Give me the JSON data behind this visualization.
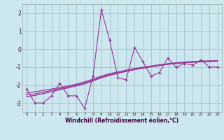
{
  "x": [
    0,
    1,
    2,
    3,
    4,
    5,
    6,
    7,
    8,
    9,
    10,
    11,
    12,
    13,
    14,
    15,
    16,
    17,
    18,
    19,
    20,
    21,
    22,
    23
  ],
  "y_main": [
    -2.2,
    -3.0,
    -3.0,
    -2.6,
    -1.9,
    -2.6,
    -2.6,
    -3.3,
    -1.5,
    2.2,
    0.5,
    -1.6,
    -1.7,
    0.1,
    -0.7,
    -1.5,
    -1.3,
    -0.5,
    -1.0,
    -0.8,
    -0.9,
    -0.6,
    -1.0,
    -1.0
  ],
  "y_smooth1": [
    -2.55,
    -2.5,
    -2.4,
    -2.3,
    -2.2,
    -2.1,
    -2.0,
    -1.88,
    -1.72,
    -1.55,
    -1.42,
    -1.32,
    -1.22,
    -1.13,
    -1.05,
    -0.98,
    -0.9,
    -0.84,
    -0.79,
    -0.75,
    -0.72,
    -0.7,
    -0.68,
    -0.67
  ],
  "y_smooth2": [
    -2.65,
    -2.58,
    -2.48,
    -2.37,
    -2.26,
    -2.16,
    -2.05,
    -1.93,
    -1.77,
    -1.6,
    -1.46,
    -1.35,
    -1.24,
    -1.14,
    -1.06,
    -0.98,
    -0.91,
    -0.85,
    -0.8,
    -0.76,
    -0.73,
    -0.71,
    -0.69,
    -0.67
  ],
  "y_smooth3": [
    -2.45,
    -2.38,
    -2.3,
    -2.22,
    -2.14,
    -2.05,
    -1.95,
    -1.82,
    -1.67,
    -1.5,
    -1.37,
    -1.27,
    -1.17,
    -1.08,
    -1.01,
    -0.94,
    -0.87,
    -0.81,
    -0.76,
    -0.72,
    -0.69,
    -0.67,
    -0.65,
    -0.64
  ],
  "line_color": "#993399",
  "bg_color": "#cce8ee",
  "grid_color": "#99bbcc",
  "xlabel": "Windchill (Refroidissement éolien,°C)",
  "ylim": [
    -3.5,
    2.5
  ],
  "xlim": [
    -0.5,
    23.5
  ],
  "yticks": [
    -3,
    -2,
    -1,
    0,
    1,
    2
  ],
  "xticks": [
    0,
    1,
    2,
    3,
    4,
    5,
    6,
    7,
    8,
    9,
    10,
    11,
    12,
    13,
    14,
    15,
    16,
    17,
    18,
    19,
    20,
    21,
    22,
    23
  ]
}
